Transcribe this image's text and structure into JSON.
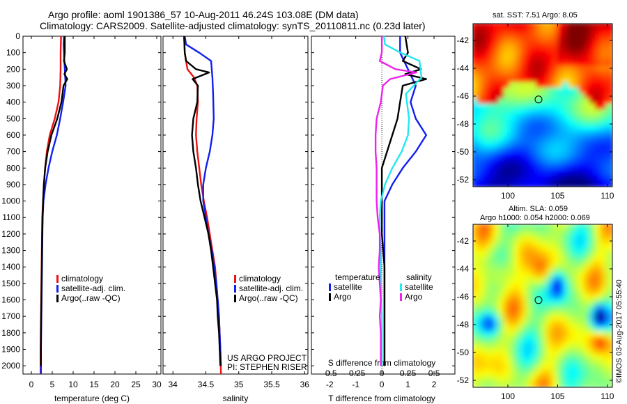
{
  "titles": {
    "line1": "Argo profile: aoml 1901386_57 10-Aug-2011 46.24S 103.08E (DM data)",
    "line2": "Climatology: CARS2009. Satellite-adjusted climatology: synTS_20110811.nc (0.23d later)"
  },
  "colors": {
    "climatology": "#ee1111",
    "satellite": "#1020ee",
    "argo": "#000000",
    "salinity_sat": "#22e8f0",
    "salinity_argo": "#ee22ee"
  },
  "depth_ticks": [
    "0",
    "100",
    "200",
    "300",
    "400",
    "500",
    "600",
    "700",
    "800",
    "900",
    "1000",
    "1100",
    "1200",
    "1300",
    "1400",
    "1500",
    "1600",
    "1700",
    "1800",
    "1900",
    "2000"
  ],
  "temperature_panel": {
    "xlabel": "temperature (deg C)",
    "xticks": [
      "0",
      "5",
      "10",
      "15",
      "20",
      "25",
      "30"
    ],
    "xlim": [
      -2,
      31
    ],
    "legend": [
      "climatology",
      "satellite-adj. clim.",
      "Argo(..raw -QC)"
    ]
  },
  "salinity_panel": {
    "xlabel": "salinity",
    "xticks": [
      "34",
      "34.5",
      "35",
      "35.5",
      "36"
    ],
    "xlim": [
      33.85,
      36.05
    ],
    "legend": [
      "climatology",
      "satellite-adj. clim.",
      "Argo(..raw -QC)"
    ],
    "credit1": "US ARGO PROJECT",
    "credit2": "PI: STEPHEN RISER"
  },
  "difference_panel": {
    "xlabel_bottom": "T difference from climatology",
    "xlabel_top": "S difference from climatology",
    "xticks_bottom": [
      "-2",
      "-1",
      "0",
      "1",
      "2"
    ],
    "xticks_top": [
      "-0.5",
      "-0.25",
      "0",
      "0.25",
      "0.5"
    ],
    "xlim_T": [
      -2.7,
      2.8
    ],
    "legend_temperature_title": "temperature",
    "legend_salinity_title": "salinity",
    "legend_satellite": "satellite",
    "legend_argo": "Argo"
  },
  "sst_map": {
    "title": "sat. SST: 7.51  Argo: 8.05",
    "yticks": [
      "-42",
      "-44",
      "-46",
      "-48",
      "-50",
      "-52"
    ],
    "xticks": [
      "100",
      "105",
      "110"
    ],
    "lon_range": [
      96.5,
      110.5
    ],
    "lat_range": [
      -52.5,
      -40.8
    ],
    "profile_location": {
      "lon": 103.08,
      "lat": -46.24
    }
  },
  "sla_map": {
    "title1": "Altim. SLA: 0.059",
    "title2": "Argo h1000: 0.054 h2000: 0.069",
    "yticks": [
      "-42",
      "-44",
      "-46",
      "-48",
      "-50",
      "-52"
    ],
    "xticks": [
      "100",
      "105",
      "110"
    ],
    "lon_range": [
      96.5,
      110.5
    ],
    "lat_range": [
      -52.5,
      -40.8
    ],
    "profile_location": {
      "lon": 103.08,
      "lat": -46.24
    }
  },
  "imos_stamp": "©IMOS 03-Aug-2017 05:55:40",
  "chart_data": [
    {
      "type": "line",
      "name": "temperature",
      "xlabel": "temperature (deg C)",
      "ylabel": "",
      "xlim": [
        -2,
        31
      ],
      "ylim": [
        2050,
        0
      ],
      "series": [
        {
          "name": "climatology",
          "points": [
            [
              7.1,
              0
            ],
            [
              7.0,
              100
            ],
            [
              7.0,
              200
            ],
            [
              6.9,
              300
            ],
            [
              6.5,
              400
            ],
            [
              5.6,
              500
            ],
            [
              4.4,
              600
            ],
            [
              3.7,
              700
            ],
            [
              3.3,
              800
            ],
            [
              3.0,
              900
            ],
            [
              2.8,
              1000
            ],
            [
              2.6,
              1100
            ],
            [
              2.5,
              1300
            ],
            [
              2.4,
              1500
            ],
            [
              2.3,
              1700
            ],
            [
              2.2,
              1900
            ],
            [
              2.2,
              2050
            ]
          ]
        },
        {
          "name": "satellite-adj. clim.",
          "points": [
            [
              7.8,
              0
            ],
            [
              7.7,
              50
            ],
            [
              7.8,
              100
            ],
            [
              8.0,
              200
            ],
            [
              8.2,
              300
            ],
            [
              7.6,
              400
            ],
            [
              6.9,
              500
            ],
            [
              6.1,
              600
            ],
            [
              5.0,
              700
            ],
            [
              4.1,
              800
            ],
            [
              3.4,
              900
            ],
            [
              2.9,
              1000
            ],
            [
              2.7,
              1100
            ],
            [
              2.6,
              1300
            ],
            [
              2.5,
              1500
            ],
            [
              2.4,
              1700
            ],
            [
              2.3,
              1900
            ],
            [
              2.3,
              2050
            ]
          ]
        },
        {
          "name": "Argo(..raw -QC)",
          "points": [
            [
              8.0,
              0
            ],
            [
              8.0,
              100
            ],
            [
              7.8,
              150
            ],
            [
              8.5,
              200
            ],
            [
              7.9,
              230
            ],
            [
              8.6,
              260
            ],
            [
              7.7,
              300
            ],
            [
              7.2,
              400
            ],
            [
              6.2,
              500
            ],
            [
              4.8,
              600
            ],
            [
              3.9,
              700
            ],
            [
              3.3,
              800
            ],
            [
              3.0,
              900
            ],
            [
              2.8,
              1000
            ],
            [
              2.6,
              1200
            ],
            [
              2.5,
              1400
            ],
            [
              2.4,
              1600
            ],
            [
              2.3,
              1800
            ],
            [
              2.3,
              2000
            ]
          ]
        }
      ]
    },
    {
      "type": "line",
      "name": "salinity",
      "xlabel": "salinity",
      "ylabel": "",
      "xlim": [
        33.85,
        36.05
      ],
      "ylim": [
        2050,
        0
      ],
      "series": [
        {
          "name": "climatology",
          "points": [
            [
              34.17,
              0
            ],
            [
              34.18,
              100
            ],
            [
              34.22,
              200
            ],
            [
              34.32,
              250
            ],
            [
              34.37,
              300
            ],
            [
              34.38,
              400
            ],
            [
              34.36,
              500
            ],
            [
              34.35,
              600
            ],
            [
              34.37,
              700
            ],
            [
              34.4,
              800
            ],
            [
              34.43,
              900
            ],
            [
              34.47,
              1000
            ],
            [
              34.52,
              1100
            ],
            [
              34.56,
              1200
            ],
            [
              34.6,
              1300
            ],
            [
              34.64,
              1400
            ],
            [
              34.66,
              1500
            ],
            [
              34.68,
              1600
            ],
            [
              34.7,
              1700
            ],
            [
              34.71,
              1800
            ],
            [
              34.72,
              1900
            ],
            [
              34.73,
              2050
            ]
          ]
        },
        {
          "name": "satellite-adj. clim.",
          "points": [
            [
              34.18,
              0
            ],
            [
              34.2,
              50
            ],
            [
              34.4,
              100
            ],
            [
              34.58,
              150
            ],
            [
              34.6,
              250
            ],
            [
              34.61,
              350
            ],
            [
              34.62,
              500
            ],
            [
              34.6,
              600
            ],
            [
              34.56,
              700
            ],
            [
              34.5,
              800
            ],
            [
              34.46,
              900
            ],
            [
              34.46,
              1000
            ],
            [
              34.5,
              1100
            ],
            [
              34.54,
              1200
            ],
            [
              34.59,
              1300
            ],
            [
              34.63,
              1400
            ],
            [
              34.66,
              1500
            ],
            [
              34.68,
              1600
            ],
            [
              34.7,
              1700
            ],
            [
              34.71,
              1800
            ],
            [
              34.72,
              1900
            ],
            [
              34.73,
              2000
            ]
          ]
        },
        {
          "name": "Argo(..raw -QC)",
          "points": [
            [
              34.17,
              0
            ],
            [
              34.18,
              100
            ],
            [
              34.2,
              150
            ],
            [
              34.35,
              200
            ],
            [
              34.55,
              220
            ],
            [
              34.3,
              260
            ],
            [
              34.38,
              300
            ],
            [
              34.37,
              400
            ],
            [
              34.31,
              500
            ],
            [
              34.29,
              600
            ],
            [
              34.31,
              700
            ],
            [
              34.35,
              800
            ],
            [
              34.38,
              900
            ],
            [
              34.42,
              1000
            ],
            [
              34.48,
              1100
            ],
            [
              34.54,
              1200
            ],
            [
              34.58,
              1300
            ],
            [
              34.61,
              1400
            ],
            [
              34.64,
              1500
            ],
            [
              34.67,
              1600
            ],
            [
              34.68,
              1700
            ],
            [
              34.7,
              1800
            ],
            [
              34.71,
              1900
            ],
            [
              34.72,
              2000
            ]
          ]
        }
      ]
    },
    {
      "type": "line",
      "name": "difference",
      "xlabel": "T difference from climatology",
      "ylabel": "",
      "xlim": [
        -2.7,
        2.8
      ],
      "ylim": [
        2050,
        0
      ],
      "series": [
        {
          "name": "temperature satellite",
          "points": [
            [
              0.7,
              0
            ],
            [
              0.7,
              100
            ],
            [
              1.0,
              200
            ],
            [
              1.3,
              300
            ],
            [
              1.1,
              400
            ],
            [
              1.3,
              500
            ],
            [
              1.7,
              600
            ],
            [
              1.3,
              700
            ],
            [
              0.8,
              800
            ],
            [
              0.4,
              900
            ],
            [
              0.1,
              1000
            ],
            [
              0.1,
              1100
            ],
            [
              0.1,
              1300
            ],
            [
              0.1,
              1500
            ],
            [
              0.1,
              1700
            ],
            [
              0.1,
              1900
            ],
            [
              0.1,
              2000
            ]
          ]
        },
        {
          "name": "temperature Argo",
          "points": [
            [
              0.9,
              0
            ],
            [
              1.0,
              100
            ],
            [
              0.8,
              150
            ],
            [
              1.5,
              200
            ],
            [
              0.9,
              230
            ],
            [
              1.7,
              260
            ],
            [
              0.8,
              300
            ],
            [
              0.7,
              400
            ],
            [
              0.6,
              500
            ],
            [
              0.4,
              600
            ],
            [
              0.2,
              700
            ],
            [
              0.0,
              800
            ],
            [
              0.0,
              900
            ],
            [
              0.0,
              1000
            ],
            [
              0.0,
              1200
            ],
            [
              0.1,
              1400
            ],
            [
              0.1,
              1600
            ],
            [
              0.1,
              1800
            ],
            [
              0.1,
              2000
            ]
          ]
        },
        {
          "name": "salinity satellite",
          "points": [
            [
              0.02,
              0
            ],
            [
              0.03,
              50
            ],
            [
              0.18,
              100
            ],
            [
              0.36,
              150
            ],
            [
              0.38,
              250
            ],
            [
              0.23,
              350
            ],
            [
              0.26,
              500
            ],
            [
              0.25,
              600
            ],
            [
              0.19,
              700
            ],
            [
              0.1,
              800
            ],
            [
              0.03,
              900
            ],
            [
              -0.01,
              1000
            ],
            [
              -0.02,
              1100
            ],
            [
              -0.02,
              1200
            ],
            [
              -0.01,
              1300
            ],
            [
              -0.01,
              1500
            ],
            [
              0.0,
              1700
            ],
            [
              0.0,
              1900
            ],
            [
              0.0,
              2000
            ]
          ]
        },
        {
          "name": "salinity Argo",
          "points": [
            [
              0.0,
              0
            ],
            [
              0.0,
              100
            ],
            [
              -0.02,
              150
            ],
            [
              0.13,
              200
            ],
            [
              0.33,
              220
            ],
            [
              0.08,
              260
            ],
            [
              0.01,
              300
            ],
            [
              -0.01,
              400
            ],
            [
              -0.05,
              500
            ],
            [
              -0.06,
              600
            ],
            [
              -0.06,
              700
            ],
            [
              -0.05,
              800
            ],
            [
              -0.05,
              900
            ],
            [
              -0.05,
              1000
            ],
            [
              -0.04,
              1100
            ],
            [
              -0.02,
              1200
            ],
            [
              -0.02,
              1300
            ],
            [
              -0.03,
              1400
            ],
            [
              -0.02,
              1500
            ],
            [
              -0.01,
              1600
            ],
            [
              -0.02,
              1700
            ],
            [
              -0.01,
              1800
            ],
            [
              -0.01,
              1900
            ],
            [
              -0.01,
              2000
            ]
          ]
        }
      ]
    },
    {
      "type": "heatmap",
      "name": "sat-sst-map",
      "title": "sat. SST: 7.51  Argo: 8.05",
      "xlim": [
        96.5,
        110.5
      ],
      "ylim": [
        -52.5,
        -40.8
      ]
    },
    {
      "type": "heatmap",
      "name": "altimetry-sla-map",
      "title": "Altim. SLA: 0.059",
      "xlim": [
        96.5,
        110.5
      ],
      "ylim": [
        -52.5,
        -40.8
      ]
    }
  ]
}
